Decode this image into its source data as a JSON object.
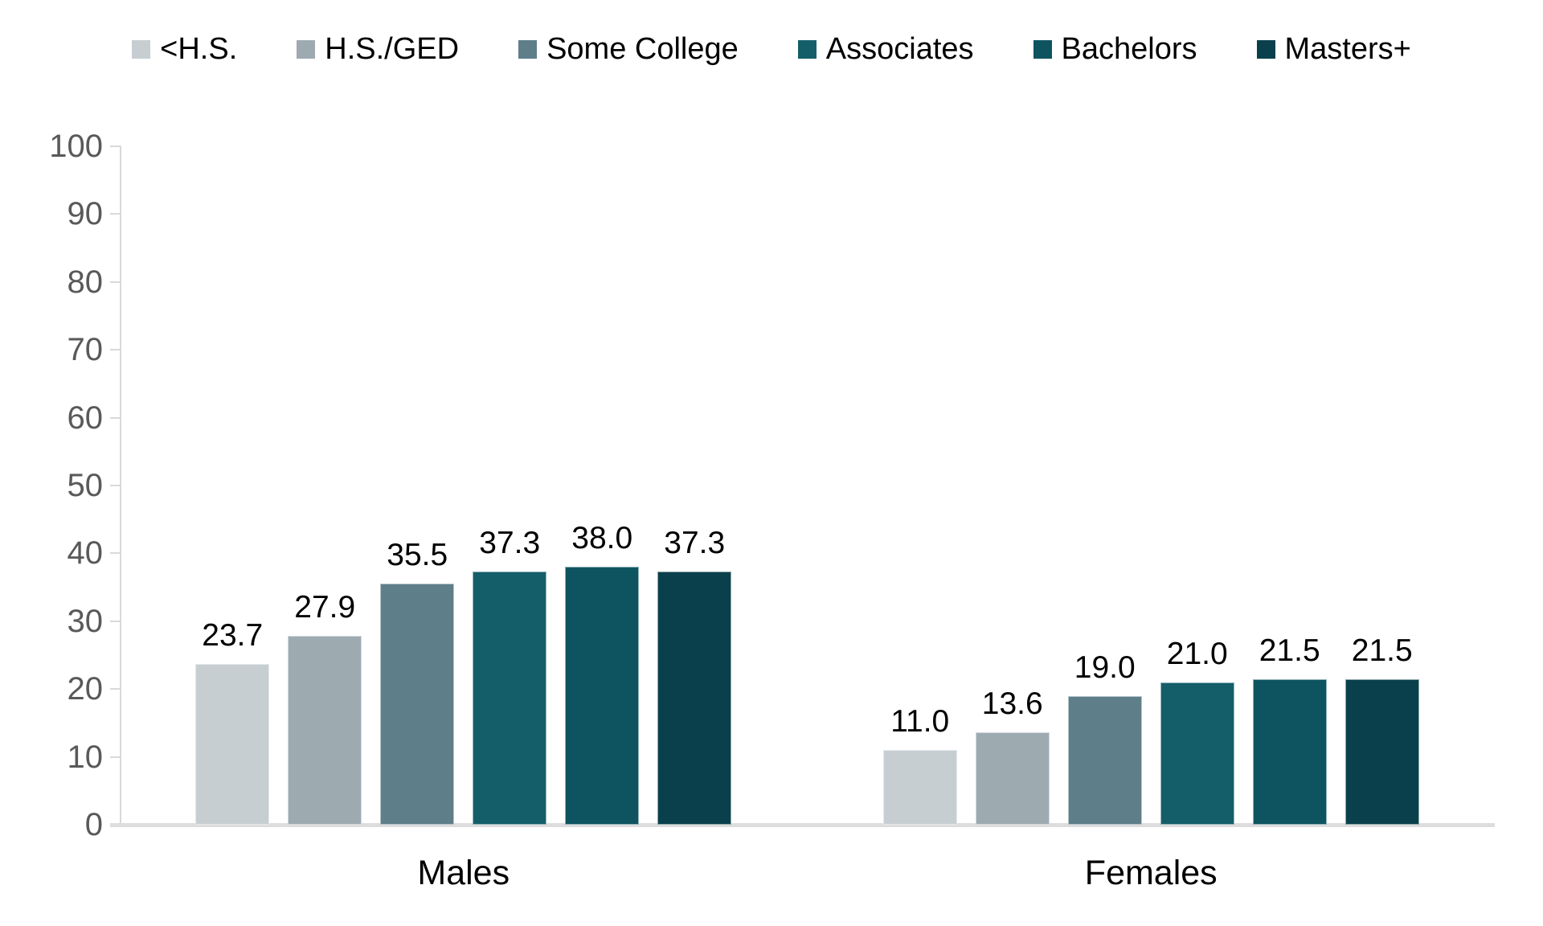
{
  "chart_data": {
    "type": "bar",
    "title": "",
    "categories": [
      "Males",
      "Females"
    ],
    "series": [
      {
        "name": "<H.S.",
        "color": "#c6ced1",
        "values": [
          23.7,
          11.0
        ],
        "labels": [
          "23.7",
          "11.0"
        ]
      },
      {
        "name": "H.S./GED",
        "color": "#9dabb1",
        "values": [
          27.9,
          13.6
        ],
        "labels": [
          "27.9",
          "13.6"
        ]
      },
      {
        "name": "Some College",
        "color": "#5e7e89",
        "values": [
          35.5,
          19.0
        ],
        "labels": [
          "35.5",
          "19.0"
        ]
      },
      {
        "name": "Associates",
        "color": "#145e6a",
        "values": [
          37.3,
          21.0
        ],
        "labels": [
          "37.3",
          "21.0"
        ]
      },
      {
        "name": "Bachelors",
        "color": "#0e5460",
        "values": [
          38.0,
          21.5
        ],
        "labels": [
          "38.0",
          "21.5"
        ]
      },
      {
        "name": "Masters+",
        "color": "#0a404b",
        "values": [
          37.3,
          21.5
        ],
        "labels": [
          "37.3",
          "21.5"
        ]
      }
    ],
    "xlabel": "",
    "ylabel": "",
    "ylim": [
      0,
      100
    ],
    "yticks": [
      0,
      10,
      20,
      30,
      40,
      50,
      60,
      70,
      80,
      90,
      100
    ],
    "grid": false,
    "legend_position": "top",
    "value_labels_shown": true,
    "colors": {
      "axis_line": "#d9d9d9",
      "tick_label": "#595959",
      "value_label": "#000000",
      "legend_text": "#000000",
      "background": "#ffffff"
    }
  }
}
